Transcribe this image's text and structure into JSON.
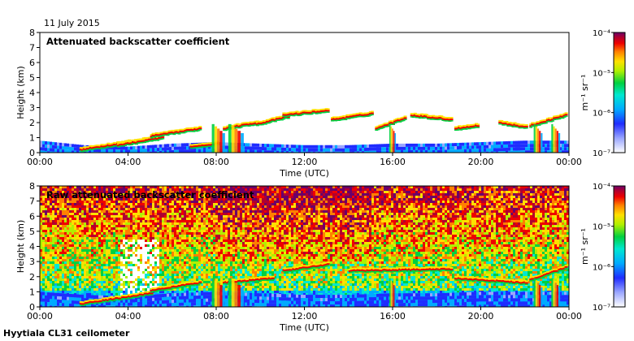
{
  "header": {
    "date": "11 July 2015"
  },
  "footer": {
    "site": "Hyytiala CL31 ceilometer"
  },
  "chart_data": [
    {
      "type": "heatmap",
      "title": "Attenuated backscatter coefficient",
      "xlabel": "Time (UTC)",
      "ylabel": "Height (km)",
      "xlim": [
        "00:00",
        "24:00"
      ],
      "ylim": [
        0,
        8
      ],
      "x_ticks": [
        "00:00",
        "04:00",
        "08:00",
        "12:00",
        "16:00",
        "20:00",
        "00:00"
      ],
      "y_ticks": [
        "0",
        "1",
        "2",
        "3",
        "4",
        "5",
        "6",
        "7",
        "8"
      ],
      "colorbar": {
        "label": "m⁻¹ sr⁻¹",
        "scale": "log",
        "range": [
          1e-07,
          0.0001
        ],
        "ticks": [
          "10⁻⁷",
          "10⁻⁶",
          "10⁻⁵",
          "10⁻⁴"
        ]
      },
      "noise": false,
      "aerosol_layer_top_km": [
        [
          0,
          0.8
        ],
        [
          2,
          0.5
        ],
        [
          4,
          0.4
        ],
        [
          6,
          0.6
        ],
        [
          8,
          0.7
        ],
        [
          10,
          0.6
        ],
        [
          12,
          0.5
        ],
        [
          14,
          0.5
        ],
        [
          16,
          0.6
        ],
        [
          18,
          0.6
        ],
        [
          20,
          0.7
        ],
        [
          22,
          0.8
        ],
        [
          24,
          0.8
        ]
      ],
      "cloud_layers": [
        {
          "t_start": 1.8,
          "t_end": 5.0,
          "h_start": 0.2,
          "h_end": 0.9
        },
        {
          "t_start": 3.5,
          "t_end": 5.5,
          "h_start": 0.5,
          "h_end": 1.0
        },
        {
          "t_start": 5.0,
          "t_end": 7.2,
          "h_start": 1.1,
          "h_end": 1.6
        },
        {
          "t_start": 6.8,
          "t_end": 8.0,
          "h_start": 0.4,
          "h_end": 0.6
        },
        {
          "t_start": 8.3,
          "t_end": 9.8,
          "h_start": 1.6,
          "h_end": 2.0
        },
        {
          "t_start": 9.8,
          "t_end": 11.2,
          "h_start": 1.9,
          "h_end": 2.4
        },
        {
          "t_start": 11.0,
          "t_end": 13.0,
          "h_start": 2.5,
          "h_end": 2.8
        },
        {
          "t_start": 13.2,
          "t_end": 15.0,
          "h_start": 2.2,
          "h_end": 2.6
        },
        {
          "t_start": 15.2,
          "t_end": 16.5,
          "h_start": 1.6,
          "h_end": 2.3
        },
        {
          "t_start": 16.8,
          "t_end": 18.6,
          "h_start": 2.5,
          "h_end": 2.2
        },
        {
          "t_start": 18.8,
          "t_end": 19.8,
          "h_start": 1.6,
          "h_end": 1.8
        },
        {
          "t_start": 20.8,
          "t_end": 22.0,
          "h_start": 2.0,
          "h_end": 1.7
        },
        {
          "t_start": 22.2,
          "t_end": 23.8,
          "h_start": 1.8,
          "h_end": 2.5
        }
      ],
      "precip_events": [
        {
          "t": 8.1,
          "w": 0.6
        },
        {
          "t": 8.9,
          "w": 0.7
        },
        {
          "t": 16.0,
          "w": 0.3
        },
        {
          "t": 22.6,
          "w": 0.4
        },
        {
          "t": 23.4,
          "w": 0.4
        }
      ]
    },
    {
      "type": "heatmap",
      "title": "Raw attenuated backscatter coefficient",
      "xlabel": "Time (UTC)",
      "ylabel": "Height (km)",
      "xlim": [
        "00:00",
        "24:00"
      ],
      "ylim": [
        0,
        8
      ],
      "x_ticks": [
        "00:00",
        "04:00",
        "08:00",
        "12:00",
        "16:00",
        "20:00",
        "00:00"
      ],
      "y_ticks": [
        "0",
        "1",
        "2",
        "3",
        "4",
        "5",
        "6",
        "7",
        "8"
      ],
      "colorbar": {
        "label": "m⁻¹ sr⁻¹",
        "scale": "log",
        "range": [
          1e-07,
          0.0001
        ],
        "ticks": [
          "10⁻⁷",
          "10⁻⁶",
          "10⁻⁵",
          "10⁻⁴"
        ]
      },
      "noise": true,
      "aerosol_layer_top_km": [
        [
          0,
          1.0
        ],
        [
          2,
          0.8
        ],
        [
          4,
          0.7
        ],
        [
          6,
          0.9
        ],
        [
          8,
          1.0
        ],
        [
          10,
          0.9
        ],
        [
          12,
          0.8
        ],
        [
          14,
          0.8
        ],
        [
          16,
          0.9
        ],
        [
          18,
          0.9
        ],
        [
          20,
          1.0
        ],
        [
          22,
          1.0
        ],
        [
          24,
          1.0
        ]
      ],
      "cloud_layers": [
        {
          "t_start": 1.8,
          "t_end": 5.0,
          "h_start": 0.2,
          "h_end": 0.9
        },
        {
          "t_start": 5.0,
          "t_end": 7.2,
          "h_start": 1.1,
          "h_end": 1.6
        },
        {
          "t_start": 8.3,
          "t_end": 10.5,
          "h_start": 1.6,
          "h_end": 1.9
        },
        {
          "t_start": 11.0,
          "t_end": 13.0,
          "h_start": 2.4,
          "h_end": 2.8
        },
        {
          "t_start": 14.0,
          "t_end": 18.6,
          "h_start": 2.4,
          "h_end": 2.5
        },
        {
          "t_start": 18.8,
          "t_end": 22.0,
          "h_start": 1.9,
          "h_end": 1.6
        },
        {
          "t_start": 22.2,
          "t_end": 23.8,
          "h_start": 1.8,
          "h_end": 2.6
        }
      ],
      "precip_events": [
        {
          "t": 8.1,
          "w": 0.6
        },
        {
          "t": 8.9,
          "w": 0.7
        },
        {
          "t": 16.0,
          "w": 0.3
        },
        {
          "t": 22.6,
          "w": 0.4
        },
        {
          "t": 23.4,
          "w": 0.4
        }
      ]
    }
  ]
}
